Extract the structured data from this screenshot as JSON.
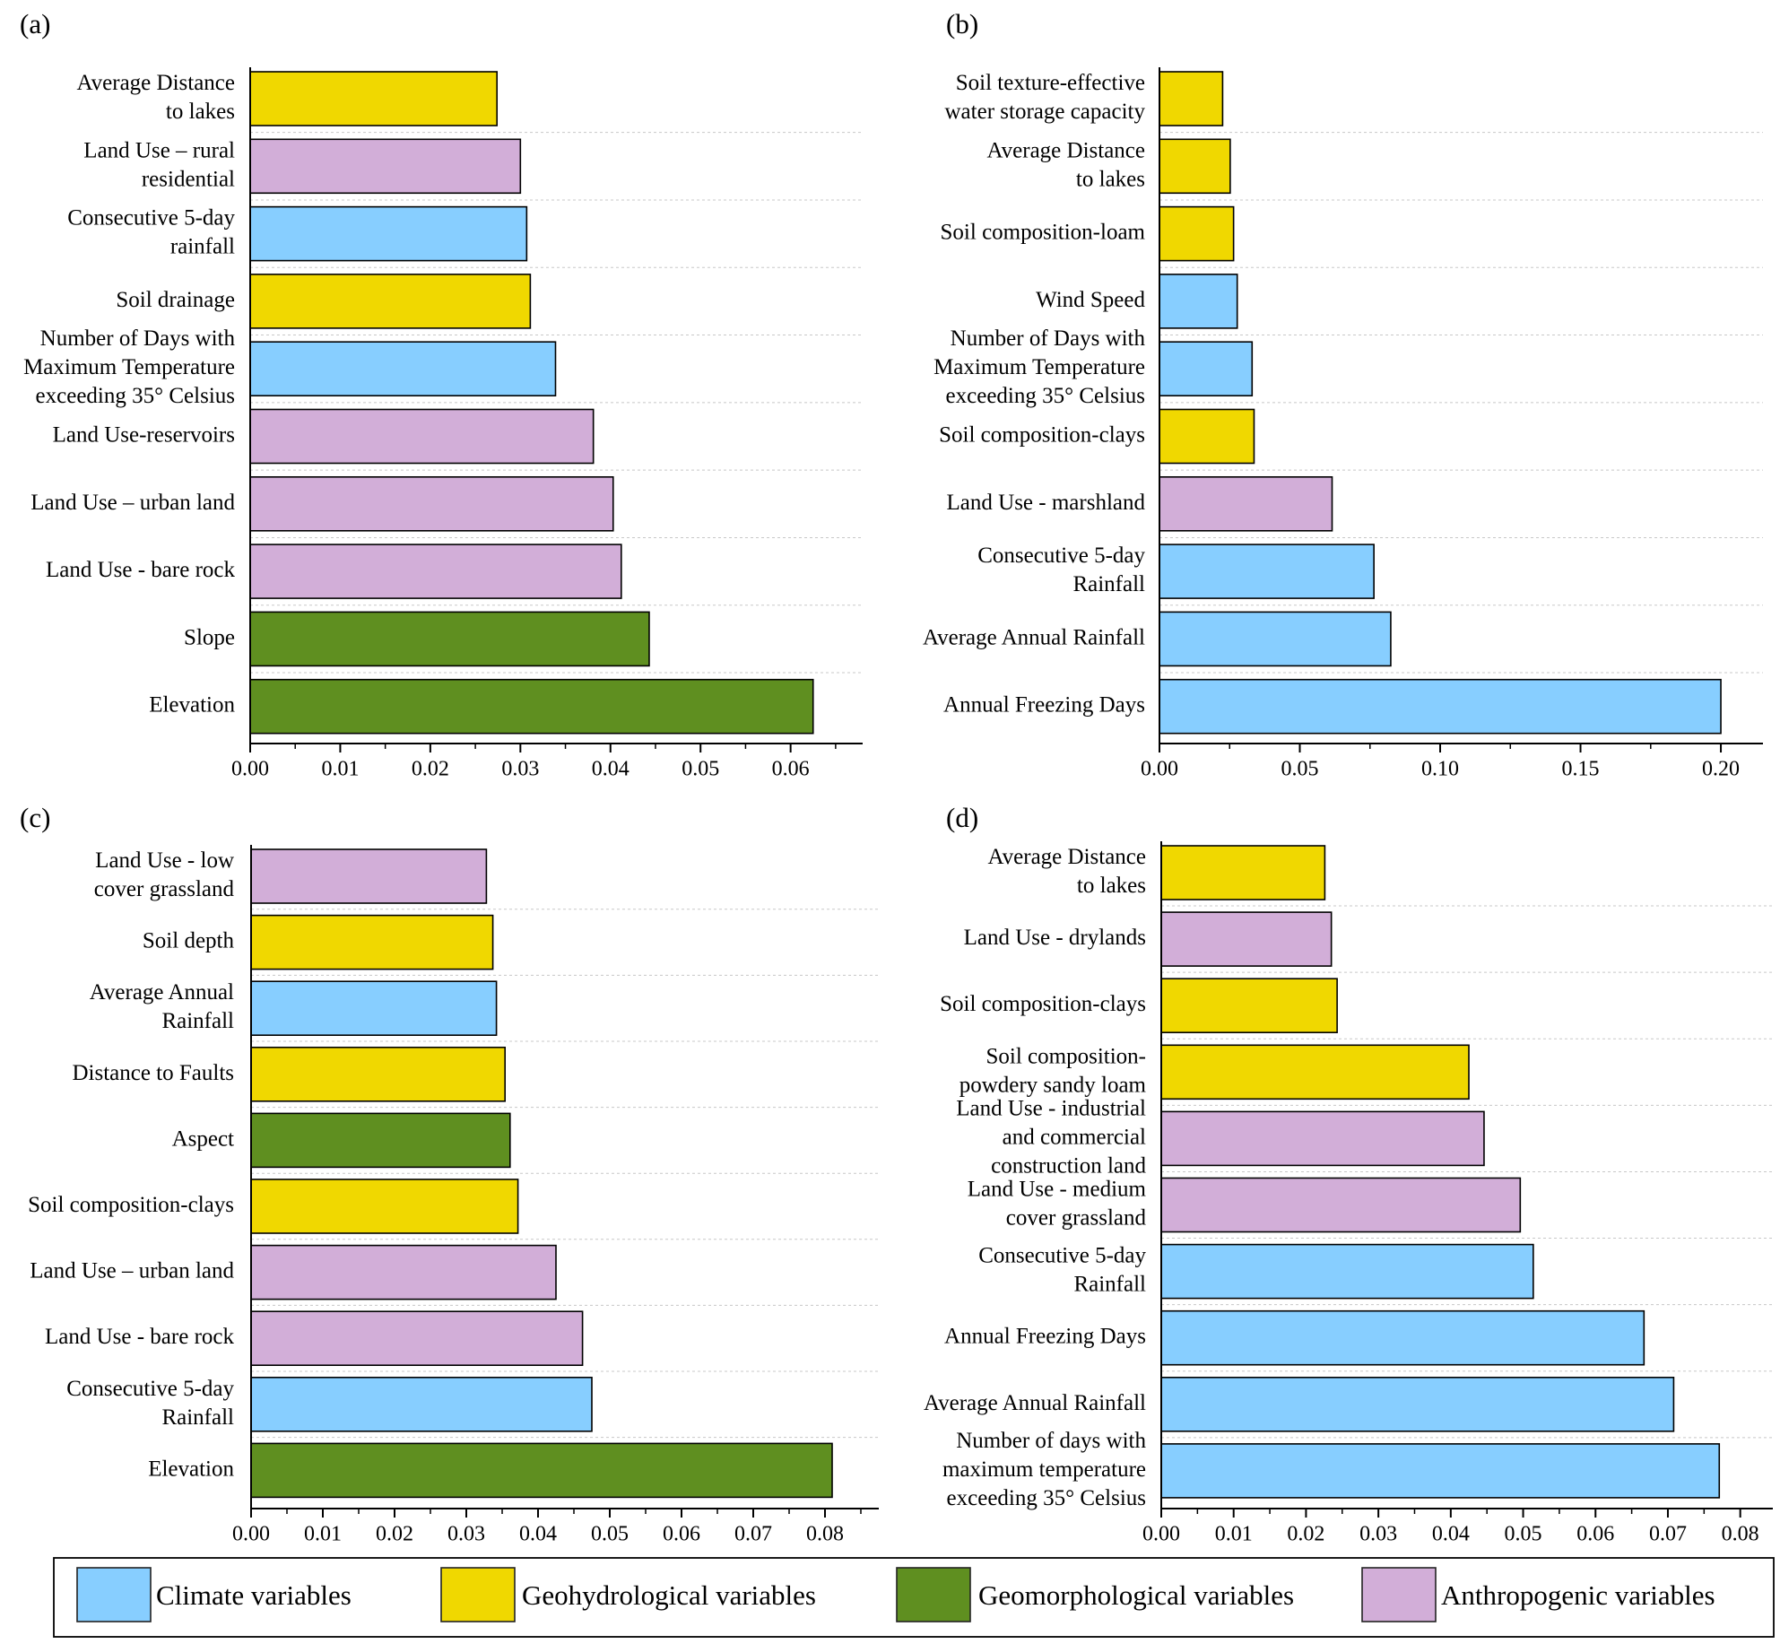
{
  "colors": {
    "climate": "#87ceff",
    "geohydro": "#f0d800",
    "geomorph": "#5f8f20",
    "anthro": "#d2aed8",
    "grid": "#c8c8c8"
  },
  "legend": [
    {
      "key": "climate",
      "label": "Climate   variables"
    },
    {
      "key": "geohydro",
      "label": "Geohydrological   variables"
    },
    {
      "key": "geomorph",
      "label": "Geomorphological  variables"
    },
    {
      "key": "anthro",
      "label": "Anthropogenic variables"
    }
  ],
  "chart_data": [
    {
      "id": "a",
      "panel_label": "(a)",
      "type": "bar",
      "orientation": "horizontal",
      "xlim": [
        0,
        0.068
      ],
      "ticks": [
        0,
        0.01,
        0.02,
        0.03,
        0.04,
        0.05,
        0.06
      ],
      "tick_labels": [
        "0.00",
        "0.01",
        "0.02",
        "0.03",
        "0.04",
        "0.05",
        "0.06"
      ],
      "bars": [
        {
          "label": [
            "Average Distance",
            "to lakes"
          ],
          "value": 0.0274,
          "cat": "geohydro"
        },
        {
          "label": [
            "Land Use – rural",
            "residential"
          ],
          "value": 0.03,
          "cat": "anthro"
        },
        {
          "label": [
            "Consecutive 5-day",
            "rainfall"
          ],
          "value": 0.0307,
          "cat": "climate"
        },
        {
          "label": [
            "Soil drainage"
          ],
          "value": 0.0311,
          "cat": "geohydro"
        },
        {
          "label": [
            "Number of Days with",
            "Maximum Temperature",
            "exceeding 35° Celsius"
          ],
          "value": 0.0339,
          "cat": "climate"
        },
        {
          "label": [
            "Land Use-reservoirs"
          ],
          "value": 0.0381,
          "cat": "anthro"
        },
        {
          "label": [
            "Land Use – urban land"
          ],
          "value": 0.0403,
          "cat": "anthro"
        },
        {
          "label": [
            "Land Use -  bare rock"
          ],
          "value": 0.0412,
          "cat": "anthro"
        },
        {
          "label": [
            "Slope"
          ],
          "value": 0.0443,
          "cat": "geomorph"
        },
        {
          "label": [
            "Elevation"
          ],
          "value": 0.0625,
          "cat": "geomorph"
        }
      ]
    },
    {
      "id": "b",
      "panel_label": "(b)",
      "type": "bar",
      "orientation": "horizontal",
      "xlim": [
        0,
        0.215
      ],
      "ticks": [
        0,
        0.05,
        0.1,
        0.15,
        0.2
      ],
      "tick_labels": [
        "0.00",
        "0.05",
        "0.10",
        "0.15",
        "0.20"
      ],
      "bars": [
        {
          "label": [
            "Soil texture-effective",
            "water storage capacity"
          ],
          "value": 0.0225,
          "cat": "geohydro"
        },
        {
          "label": [
            "Average Distance",
            "to lakes"
          ],
          "value": 0.0252,
          "cat": "geohydro"
        },
        {
          "label": [
            "Soil composition-loam"
          ],
          "value": 0.0264,
          "cat": "geohydro"
        },
        {
          "label": [
            "Wind Speed"
          ],
          "value": 0.0277,
          "cat": "climate"
        },
        {
          "label": [
            "Number of Days with",
            "Maximum Temperature",
            "exceeding 35° Celsius"
          ],
          "value": 0.033,
          "cat": "climate"
        },
        {
          "label": [
            "Soil composition-clays"
          ],
          "value": 0.0337,
          "cat": "geohydro"
        },
        {
          "label": [
            "Land Use - marshland"
          ],
          "value": 0.0615,
          "cat": "anthro"
        },
        {
          "label": [
            "Consecutive 5-day",
            "Rainfall"
          ],
          "value": 0.0764,
          "cat": "climate"
        },
        {
          "label": [
            "Average Annual Rainfall"
          ],
          "value": 0.0824,
          "cat": "climate"
        },
        {
          "label": [
            "Annual Freezing Days"
          ],
          "value": 0.2,
          "cat": "climate"
        }
      ]
    },
    {
      "id": "c",
      "panel_label": "(c)",
      "type": "bar",
      "orientation": "horizontal",
      "xlim": [
        0,
        0.0875
      ],
      "ticks": [
        0,
        0.01,
        0.02,
        0.03,
        0.04,
        0.05,
        0.06,
        0.07,
        0.08
      ],
      "tick_labels": [
        "0.00",
        "0.01",
        "0.02",
        "0.03",
        "0.04",
        "0.05",
        "0.06",
        "0.07",
        "0.08"
      ],
      "bars": [
        {
          "label": [
            "Land Use - low",
            "cover grassland"
          ],
          "value": 0.0328,
          "cat": "anthro"
        },
        {
          "label": [
            "Soil depth"
          ],
          "value": 0.0337,
          "cat": "geohydro"
        },
        {
          "label": [
            "Average Annual",
            "Rainfall"
          ],
          "value": 0.0342,
          "cat": "climate"
        },
        {
          "label": [
            "Distance to Faults"
          ],
          "value": 0.0354,
          "cat": "geohydro"
        },
        {
          "label": [
            "Aspect"
          ],
          "value": 0.0361,
          "cat": "geomorph"
        },
        {
          "label": [
            "Soil composition-clays"
          ],
          "value": 0.0372,
          "cat": "geohydro"
        },
        {
          "label": [
            "Land Use – urban land"
          ],
          "value": 0.0425,
          "cat": "anthro"
        },
        {
          "label": [
            "Land Use -  bare rock"
          ],
          "value": 0.0462,
          "cat": "anthro"
        },
        {
          "label": [
            "Consecutive 5-day",
            "Rainfall"
          ],
          "value": 0.0475,
          "cat": "climate"
        },
        {
          "label": [
            "Elevation"
          ],
          "value": 0.081,
          "cat": "geomorph"
        }
      ]
    },
    {
      "id": "d",
      "panel_label": "(d)",
      "type": "bar",
      "orientation": "horizontal",
      "xlim": [
        0,
        0.0845
      ],
      "ticks": [
        0,
        0.01,
        0.02,
        0.03,
        0.04,
        0.05,
        0.06,
        0.07,
        0.08
      ],
      "tick_labels": [
        "0.00",
        "0.01",
        "0.02",
        "0.03",
        "0.04",
        "0.05",
        "0.06",
        "0.07",
        "0.08"
      ],
      "bars": [
        {
          "label": [
            "Average Distance",
            "to lakes"
          ],
          "value": 0.0226,
          "cat": "geohydro"
        },
        {
          "label": [
            "Land Use - drylands"
          ],
          "value": 0.0235,
          "cat": "anthro"
        },
        {
          "label": [
            "Soil composition-clays"
          ],
          "value": 0.0243,
          "cat": "geohydro"
        },
        {
          "label": [
            "Soil composition-",
            "powdery sandy loam"
          ],
          "value": 0.0425,
          "cat": "geohydro"
        },
        {
          "label": [
            "Land Use - industrial",
            "and commercial",
            "construction land"
          ],
          "value": 0.0446,
          "cat": "anthro"
        },
        {
          "label": [
            "Land Use - medium",
            "cover grassland"
          ],
          "value": 0.0496,
          "cat": "anthro"
        },
        {
          "label": [
            "Consecutive 5-day",
            "Rainfall"
          ],
          "value": 0.0514,
          "cat": "climate"
        },
        {
          "label": [
            "Annual Freezing Days"
          ],
          "value": 0.0667,
          "cat": "climate"
        },
        {
          "label": [
            "Average Annual Rainfall"
          ],
          "value": 0.0708,
          "cat": "climate"
        },
        {
          "label": [
            "Number of days with",
            "maximum temperature",
            "exceeding 35° Celsius"
          ],
          "value": 0.0771,
          "cat": "climate"
        }
      ]
    }
  ]
}
